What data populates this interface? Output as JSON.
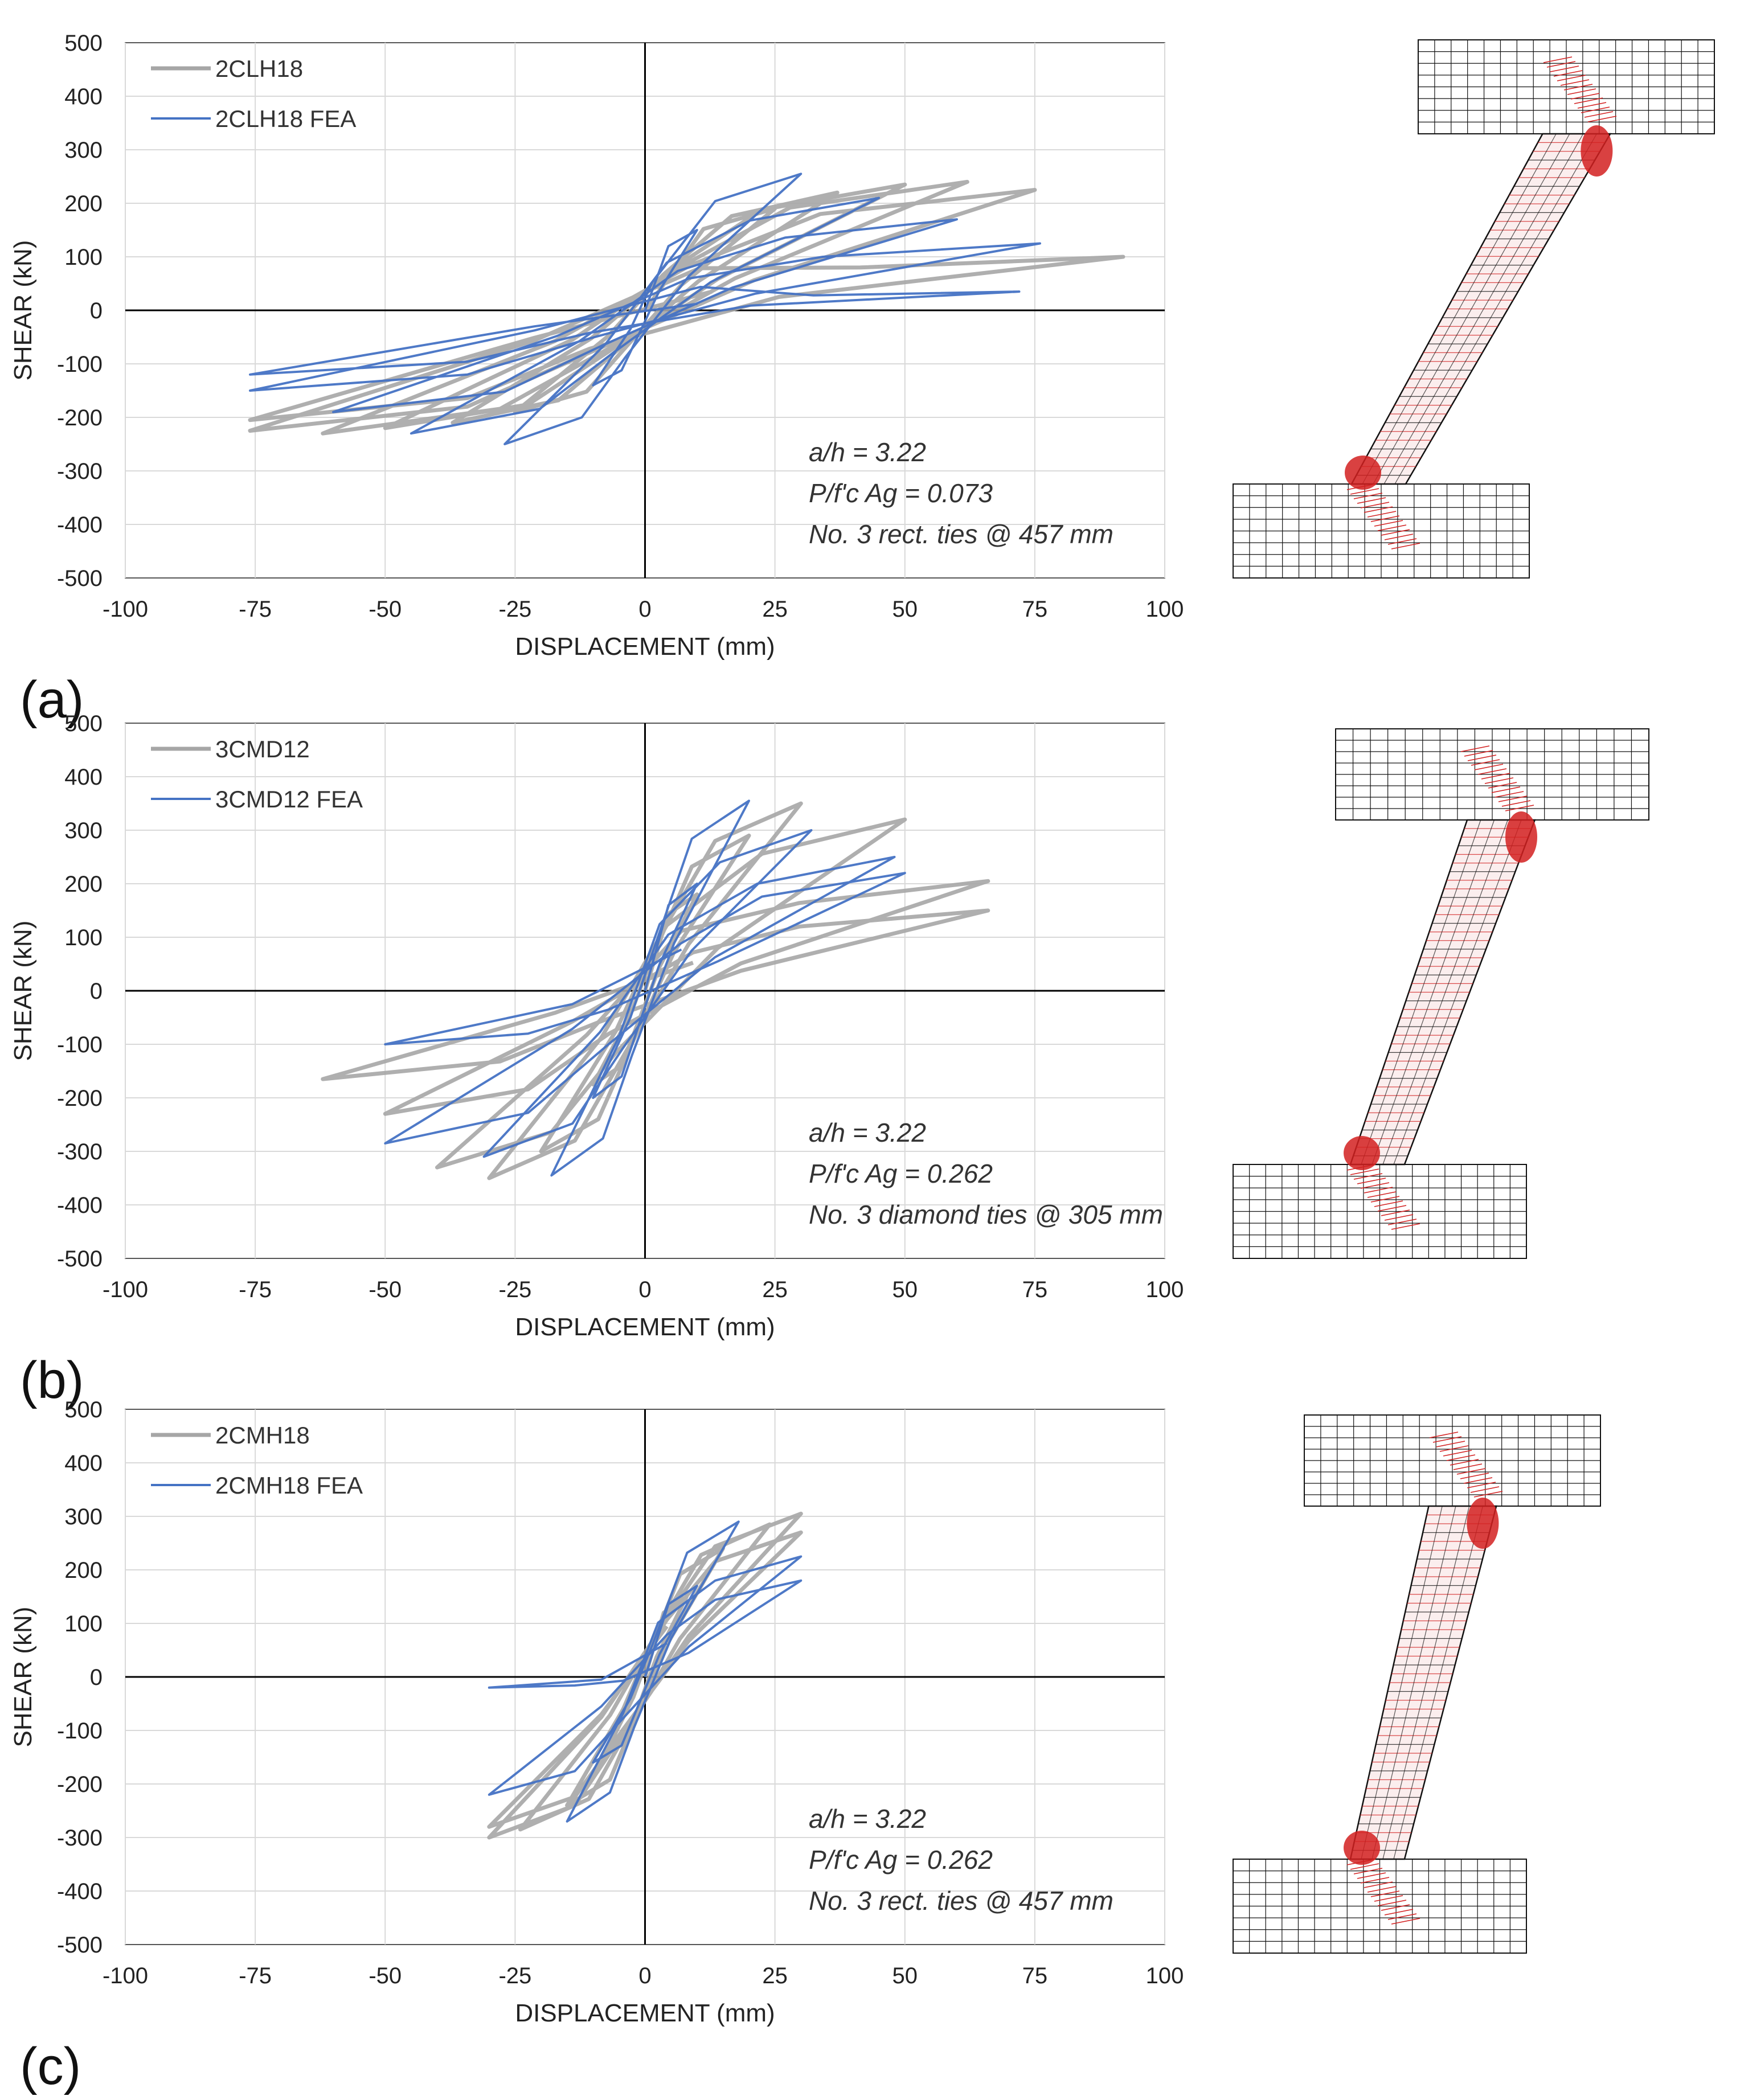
{
  "colors": {
    "test": "#a6a6a6",
    "fea": "#4472c4",
    "grid": "#d9d9d9",
    "axis": "#000000",
    "fem_red": "#d22020",
    "fem_black": "#111111"
  },
  "chart_data": [
    {
      "panel_label": "(a)",
      "type": "line",
      "title": "",
      "xlabel": "DISPLACEMENT (mm)",
      "ylabel": "SHEAR (kN)",
      "xlim": [
        -100,
        100
      ],
      "ylim": [
        -500,
        500
      ],
      "xticks": [
        "-100",
        "-75",
        "-50",
        "-25",
        "0",
        "25",
        "50",
        "75",
        "100"
      ],
      "yticks": [
        "500",
        "400",
        "300",
        "200",
        "100",
        "0",
        "-100",
        "-200",
        "-300",
        "-400",
        "-500"
      ],
      "legend": [
        "2CLH18",
        "2CLH18 FEA"
      ],
      "annotations": [
        "a/h = 3.22",
        "P/f'c Ag = 0.073",
        "No. 3 rect. ties @ 457 mm"
      ],
      "series": [
        {
          "name": "2CLH18",
          "role": "test",
          "cycles": [
            {
              "xmax": 25,
              "vmax": 190,
              "xmin": -25,
              "vmin": -190
            },
            {
              "xmax": 37,
              "vmax": 220,
              "xmin": -37,
              "vmin": -210
            },
            {
              "xmax": 50,
              "vmax": 235,
              "xmin": -50,
              "vmin": -220
            },
            {
              "xmax": 62,
              "vmax": 240,
              "xmin": -62,
              "vmin": -230
            },
            {
              "xmax": 75,
              "vmax": 225,
              "xmin": -76,
              "vmin": -225
            },
            {
              "xmax": 92,
              "vmax": 100,
              "xmin": -76,
              "vmin": -205
            }
          ]
        },
        {
          "name": "2CLH18 FEA",
          "role": "fea",
          "cycles": [
            {
              "xmax": 10,
              "vmax": 150,
              "xmin": -10,
              "vmin": -140
            },
            {
              "xmax": 30,
              "vmax": 255,
              "xmin": -27,
              "vmin": -250
            },
            {
              "xmax": 45,
              "vmax": 210,
              "xmin": -45,
              "vmin": -230
            },
            {
              "xmax": 60,
              "vmax": 170,
              "xmin": -60,
              "vmin": -190
            },
            {
              "xmax": 76,
              "vmax": 125,
              "xmin": -76,
              "vmin": -150
            },
            {
              "xmax": 72,
              "vmax": 35,
              "xmin": -76,
              "vmin": -120
            }
          ]
        }
      ]
    },
    {
      "panel_label": "(b)",
      "type": "line",
      "title": "",
      "xlabel": "DISPLACEMENT (mm)",
      "ylabel": "SHEAR (kN)",
      "xlim": [
        -100,
        100
      ],
      "ylim": [
        -500,
        500
      ],
      "xticks": [
        "-100",
        "-75",
        "-50",
        "-25",
        "0",
        "25",
        "50",
        "75",
        "100"
      ],
      "yticks": [
        "500",
        "400",
        "300",
        "200",
        "100",
        "0",
        "-100",
        "-200",
        "-300",
        "-400",
        "-500"
      ],
      "legend": [
        "3CMD12",
        "3CMD12 FEA"
      ],
      "annotations": [
        "a/h = 3.22",
        "P/f'c Ag = 0.262",
        "No. 3 diamond ties @ 305 mm"
      ],
      "series": [
        {
          "name": "3CMD12",
          "role": "test",
          "cycles": [
            {
              "xmax": 10,
              "vmax": 180,
              "xmin": -10,
              "vmin": -175
            },
            {
              "xmax": 20,
              "vmax": 290,
              "xmin": -20,
              "vmin": -300
            },
            {
              "xmax": 30,
              "vmax": 350,
              "xmin": -30,
              "vmin": -350
            },
            {
              "xmax": 50,
              "vmax": 320,
              "xmin": -40,
              "vmin": -330
            },
            {
              "xmax": 66,
              "vmax": 205,
              "xmin": -50,
              "vmin": -230
            },
            {
              "xmax": 66,
              "vmax": 150,
              "xmin": -62,
              "vmin": -165
            }
          ]
        },
        {
          "name": "3CMD12 FEA",
          "role": "fea",
          "cycles": [
            {
              "xmax": 10,
              "vmax": 200,
              "xmin": -10,
              "vmin": -200
            },
            {
              "xmax": 20,
              "vmax": 355,
              "xmin": -18,
              "vmin": -345
            },
            {
              "xmax": 32,
              "vmax": 300,
              "xmin": -31,
              "vmin": -310
            },
            {
              "xmax": 48,
              "vmax": 250,
              "xmin": -50,
              "vmin": -285
            },
            {
              "xmax": 50,
              "vmax": 220,
              "xmin": -50,
              "vmin": -100
            }
          ]
        }
      ]
    },
    {
      "panel_label": "(c)",
      "type": "line",
      "title": "",
      "xlabel": "DISPLACEMENT (mm)",
      "ylabel": "SHEAR (kN)",
      "xlim": [
        -100,
        100
      ],
      "ylim": [
        -500,
        500
      ],
      "xticks": [
        "-100",
        "-75",
        "-50",
        "-25",
        "0",
        "25",
        "50",
        "75",
        "100"
      ],
      "yticks": [
        "500",
        "400",
        "300",
        "200",
        "100",
        "0",
        "-100",
        "-200",
        "-300",
        "-400",
        "-500"
      ],
      "legend": [
        "2CMH18",
        "2CMH18 FEA"
      ],
      "annotations": [
        "a/h = 3.22",
        "P/f'c Ag = 0.262",
        "No. 3 rect. ties @ 457 mm"
      ],
      "series": [
        {
          "name": "2CMH18",
          "role": "test",
          "cycles": [
            {
              "xmax": 8,
              "vmax": 150,
              "xmin": -8,
              "vmin": -150
            },
            {
              "xmax": 15,
              "vmax": 240,
              "xmin": -15,
              "vmin": -240
            },
            {
              "xmax": 24,
              "vmax": 285,
              "xmin": -24,
              "vmin": -285
            },
            {
              "xmax": 30,
              "vmax": 305,
              "xmin": -30,
              "vmin": -300
            },
            {
              "xmax": 30,
              "vmax": 270,
              "xmin": -30,
              "vmin": -280
            }
          ]
        },
        {
          "name": "2CMH18 FEA",
          "role": "fea",
          "cycles": [
            {
              "xmax": 10,
              "vmax": 170,
              "xmin": -10,
              "vmin": -160
            },
            {
              "xmax": 18,
              "vmax": 290,
              "xmin": -15,
              "vmin": -270
            },
            {
              "xmax": 30,
              "vmax": 225,
              "xmin": -30,
              "vmin": -220
            },
            {
              "xmax": 30,
              "vmax": 180,
              "xmin": -30,
              "vmin": -20
            }
          ]
        }
      ]
    }
  ]
}
